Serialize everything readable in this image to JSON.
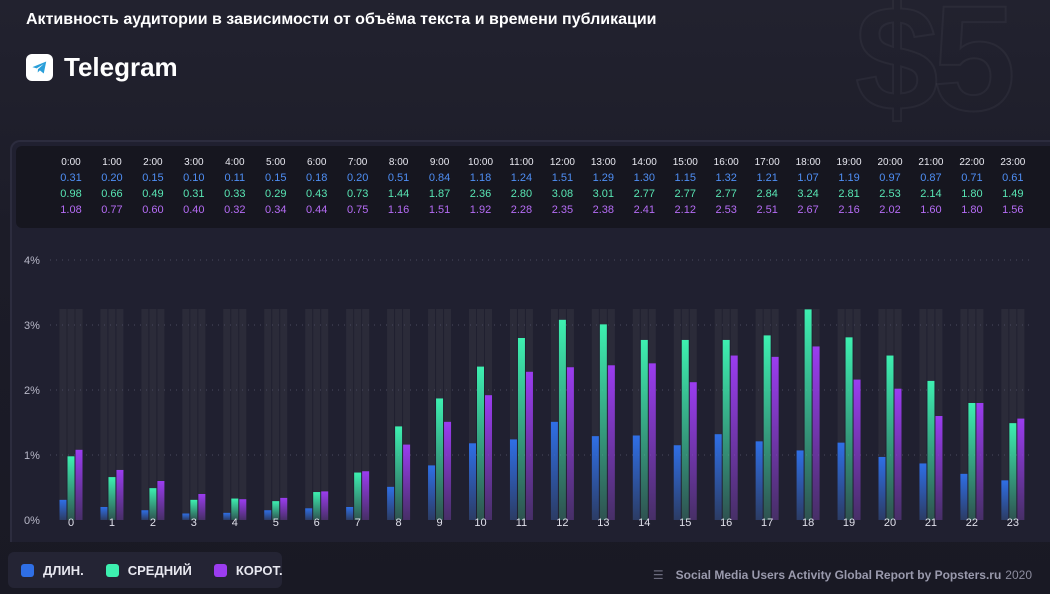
{
  "header": {
    "title": "Активность аудитории в зависимости от объёма текста и времени публикации",
    "platform": "Telegram",
    "watermark": "$5"
  },
  "legend": [
    {
      "label": "ДЛИН.",
      "color": "#2f6fe6"
    },
    {
      "label": "СРЕДНИЙ",
      "color": "#3df0b0"
    },
    {
      "label": "КОРОТ.",
      "color": "#9b3cf0"
    }
  ],
  "footer": {
    "source": "Social Media Users Activity Global Report by Popsters.ru",
    "year": "2020"
  },
  "chart_data": {
    "type": "bar",
    "categories": [
      "0",
      "1",
      "2",
      "3",
      "4",
      "5",
      "6",
      "7",
      "8",
      "9",
      "10",
      "11",
      "12",
      "13",
      "14",
      "15",
      "16",
      "17",
      "18",
      "19",
      "20",
      "21",
      "22",
      "23"
    ],
    "time_labels": [
      "0:00",
      "1:00",
      "2:00",
      "3:00",
      "4:00",
      "5:00",
      "6:00",
      "7:00",
      "8:00",
      "9:00",
      "10:00",
      "11:00",
      "12:00",
      "13:00",
      "14:00",
      "15:00",
      "16:00",
      "17:00",
      "18:00",
      "19:00",
      "20:00",
      "21:00",
      "22:00",
      "23:00"
    ],
    "series": [
      {
        "name": "ДЛИН.",
        "color": "#2f6fe6",
        "label_color": "#4f8ff5",
        "values": [
          0.31,
          0.2,
          0.15,
          0.1,
          0.11,
          0.15,
          0.18,
          0.2,
          0.51,
          0.84,
          1.18,
          1.24,
          1.51,
          1.29,
          1.3,
          1.15,
          1.32,
          1.21,
          1.07,
          1.19,
          0.97,
          0.87,
          0.71,
          0.61
        ]
      },
      {
        "name": "СРЕДНИЙ",
        "color": "#3df0b0",
        "label_color": "#59e6b4",
        "values": [
          0.98,
          0.66,
          0.49,
          0.31,
          0.33,
          0.29,
          0.43,
          0.73,
          1.44,
          1.87,
          2.36,
          2.8,
          3.08,
          3.01,
          2.77,
          2.77,
          2.77,
          2.84,
          3.24,
          2.81,
          2.53,
          2.14,
          1.8,
          1.49
        ]
      },
      {
        "name": "КОРОТ.",
        "color": "#9b3cf0",
        "label_color": "#b56cf5",
        "values": [
          1.08,
          0.77,
          0.6,
          0.4,
          0.32,
          0.34,
          0.44,
          0.75,
          1.16,
          1.51,
          1.92,
          2.28,
          2.35,
          2.38,
          2.41,
          2.12,
          2.53,
          2.51,
          2.67,
          2.16,
          2.02,
          1.6,
          1.8,
          1.56
        ]
      }
    ],
    "y_ticks": [
      "0%",
      "1%",
      "2%",
      "3%",
      "4%"
    ],
    "ylim": [
      0,
      4
    ],
    "grid": true
  }
}
